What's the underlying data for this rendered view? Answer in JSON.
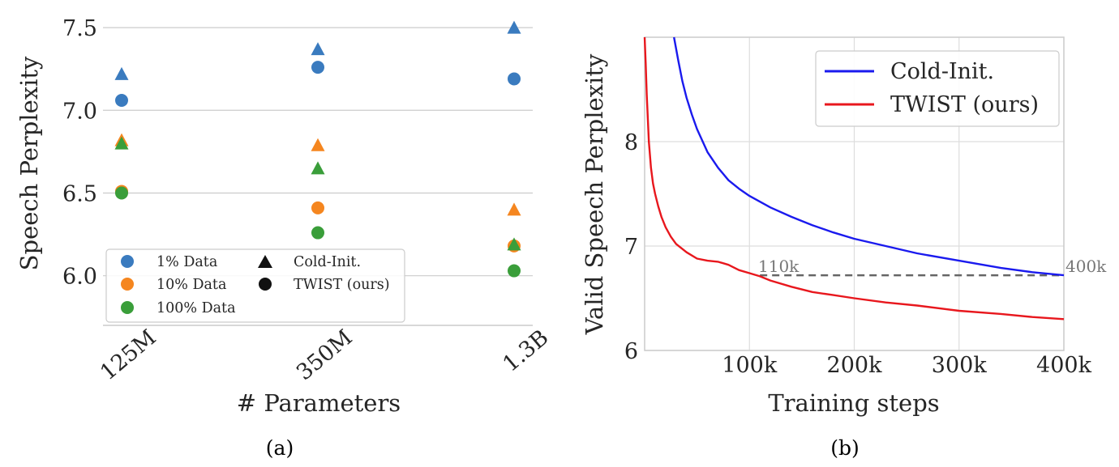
{
  "charts": [
    {
      "type": "scatter",
      "caption": "(a)",
      "xlabel": "# Parameters",
      "ylabel": "Speech Perplexity",
      "categories": [
        "125M",
        "350M",
        "1.3B"
      ],
      "yticks": [
        "6.0",
        "6.5",
        "7.0",
        "7.5"
      ],
      "ylim": [
        5.7,
        7.52
      ],
      "grid": "horizontal",
      "legend": {
        "placement": "lower-left",
        "data_entries": [
          "1% Data",
          "10% Data",
          "100% Data"
        ],
        "marker_entries": [
          "Cold-Init.",
          "TWIST (ours)"
        ]
      },
      "colors": {
        "1% Data": "#3a7bbf",
        "10% Data": "#f5861f",
        "100% Data": "#3a9e3a"
      },
      "series": [
        {
          "data": "1% Data",
          "init": "Cold-Init.",
          "marker": "triangle",
          "values": [
            7.22,
            7.37,
            7.5
          ]
        },
        {
          "data": "1% Data",
          "init": "TWIST (ours)",
          "marker": "circle",
          "values": [
            7.06,
            7.26,
            7.19
          ]
        },
        {
          "data": "10% Data",
          "init": "Cold-Init.",
          "marker": "triangle",
          "values": [
            6.82,
            6.79,
            6.4
          ]
        },
        {
          "data": "10% Data",
          "init": "TWIST (ours)",
          "marker": "circle",
          "values": [
            6.51,
            6.41,
            6.18
          ]
        },
        {
          "data": "100% Data",
          "init": "Cold-Init.",
          "marker": "triangle",
          "values": [
            6.8,
            6.65,
            6.19
          ]
        },
        {
          "data": "100% Data",
          "init": "TWIST (ours)",
          "marker": "circle",
          "values": [
            6.5,
            6.26,
            6.03
          ]
        }
      ]
    },
    {
      "type": "line",
      "caption": "(b)",
      "xlabel": "Training steps",
      "ylabel": "Valid Speech Perplexity",
      "xticks": [
        "100k",
        "200k",
        "300k",
        "400k"
      ],
      "yticks": [
        "6",
        "7",
        "8"
      ],
      "xlim": [
        0,
        400000
      ],
      "ylim": [
        6,
        9
      ],
      "grid": "both",
      "legend": {
        "placement": "top-right"
      },
      "series": [
        {
          "name": "Cold-Init.",
          "color": "#1a1aee",
          "x": [
            28000,
            32000,
            36000,
            40000,
            45000,
            50000,
            60000,
            70000,
            80000,
            90000,
            100000,
            120000,
            140000,
            160000,
            180000,
            200000,
            230000,
            260000,
            300000,
            340000,
            370000,
            400000
          ],
          "y": [
            9.0,
            8.78,
            8.58,
            8.42,
            8.26,
            8.12,
            7.9,
            7.75,
            7.63,
            7.55,
            7.48,
            7.37,
            7.28,
            7.2,
            7.13,
            7.07,
            7.0,
            6.93,
            6.86,
            6.79,
            6.75,
            6.72
          ]
        },
        {
          "name": "TWIST (ours)",
          "color": "#e8171d",
          "x": [
            0,
            1000,
            2000,
            4000,
            6000,
            8000,
            10000,
            13000,
            16000,
            20000,
            25000,
            30000,
            40000,
            50000,
            60000,
            70000,
            80000,
            90000,
            100000,
            110000,
            120000,
            140000,
            160000,
            180000,
            200000,
            230000,
            260000,
            300000,
            340000,
            370000,
            400000
          ],
          "y": [
            9.0,
            8.75,
            8.45,
            8.0,
            7.75,
            7.6,
            7.5,
            7.38,
            7.28,
            7.18,
            7.09,
            7.02,
            6.94,
            6.88,
            6.86,
            6.85,
            6.82,
            6.77,
            6.74,
            6.71,
            6.67,
            6.61,
            6.56,
            6.53,
            6.5,
            6.46,
            6.43,
            6.38,
            6.35,
            6.32,
            6.3
          ]
        }
      ],
      "reference_line": {
        "y": 6.72,
        "x_from": 110000,
        "x_to": 400000,
        "labels": [
          "110k",
          "400k"
        ]
      }
    }
  ]
}
